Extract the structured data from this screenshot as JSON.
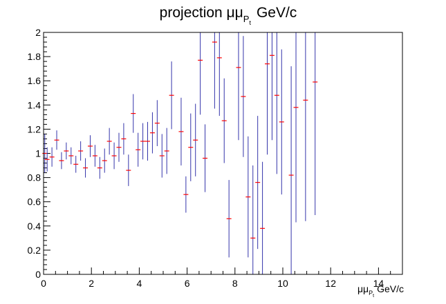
{
  "chart_data": {
    "type": "scatter",
    "title": {
      "main": "projection μμ",
      "sub": "P",
      "subsub": "t",
      "unit": "GeV/c"
    },
    "xlabel": {
      "main": "μμ",
      "sub": "P",
      "subsub": "t",
      "unit": "GeV/c"
    },
    "ylabel": "",
    "xlim": [
      0,
      15
    ],
    "ylim": [
      0,
      2
    ],
    "grid": false,
    "legend": "none",
    "x_ticks": [
      0,
      2,
      4,
      6,
      8,
      10,
      12,
      14
    ],
    "y_ticks": [
      0,
      0.2,
      0.4,
      0.6,
      0.8,
      1,
      1.2,
      1.4,
      1.6,
      1.8,
      2
    ],
    "x_tick_labels": [
      "0",
      "2",
      "4",
      "6",
      "8",
      "10",
      "12",
      "14"
    ],
    "y_tick_labels": [
      "0",
      "0.2",
      "0.4",
      "0.6",
      "0.8",
      "1",
      "1.2",
      "1.4",
      "1.6",
      "1.8",
      "2"
    ],
    "marker_color": "#ff0000",
    "errorbar_color": "#3333aa",
    "series": [
      {
        "x": [
          0.05,
          0.15,
          0.35,
          0.55,
          0.75,
          0.95,
          1.15,
          1.35,
          1.55,
          1.75,
          1.95,
          2.15,
          2.35,
          2.55,
          2.75,
          2.95,
          3.15,
          3.35,
          3.55,
          3.75,
          3.95,
          4.15,
          4.35,
          4.55,
          4.75,
          4.95,
          5.15,
          5.35,
          5.55,
          5.75,
          5.95,
          6.15,
          6.35,
          6.55,
          6.75,
          6.95,
          7.15,
          7.35,
          7.55,
          7.75,
          7.95,
          8.15,
          8.35,
          8.55,
          8.75,
          8.95,
          9.15,
          9.35,
          9.55,
          9.75,
          9.95,
          10.15,
          10.35,
          10.55,
          10.75,
          10.95,
          11.15,
          11.35,
          11.55
        ],
        "y": [
          1.0,
          0.95,
          0.97,
          1.11,
          0.94,
          1.02,
          0.98,
          0.91,
          1.02,
          0.88,
          1.06,
          0.98,
          0.88,
          0.94,
          1.1,
          0.98,
          1.05,
          1.12,
          0.86,
          1.33,
          1.03,
          1.1,
          1.1,
          1.17,
          1.25,
          0.98,
          1.02,
          1.48,
          null,
          1.18,
          0.66,
          1.05,
          1.11,
          1.77,
          0.96,
          null,
          1.92,
          1.79,
          1.27,
          0.46,
          null,
          1.71,
          1.47,
          0.64,
          0.3,
          0.76,
          0.38,
          1.74,
          1.81,
          1.48,
          1.26,
          null,
          0.82,
          1.38,
          null,
          1.44,
          null,
          1.59,
          null
        ],
        "err": [
          0.16,
          0.1,
          0.08,
          0.08,
          0.07,
          0.07,
          0.07,
          0.07,
          0.08,
          0.08,
          0.09,
          0.09,
          0.09,
          0.1,
          0.11,
          0.11,
          0.12,
          0.13,
          0.13,
          0.16,
          0.14,
          0.15,
          0.16,
          0.17,
          0.19,
          0.18,
          0.19,
          0.28,
          null,
          0.28,
          0.15,
          0.28,
          0.3,
          0.45,
          0.28,
          null,
          0.55,
          0.48,
          0.35,
          0.32,
          null,
          0.6,
          0.5,
          0.5,
          0.6,
          0.55,
          0.55,
          0.75,
          0.7,
          0.65,
          0.6,
          null,
          0.9,
          0.95,
          null,
          1.0,
          null,
          1.1,
          null
        ]
      }
    ]
  }
}
